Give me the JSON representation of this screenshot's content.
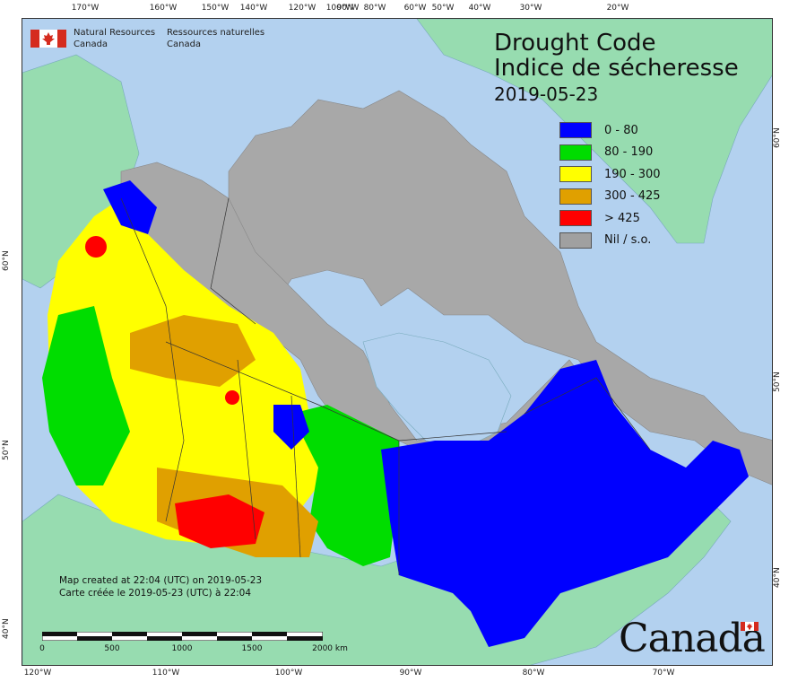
{
  "agency": {
    "en_line1": "Natural Resources",
    "en_line2": "Canada",
    "fr_line1": "Ressources naturelles",
    "fr_line2": "Canada"
  },
  "title": {
    "en": "Drought Code",
    "fr": "Indice de sécheresse",
    "date": "2019-05-23"
  },
  "legend": [
    {
      "label": "0 - 80",
      "color": "#0000ff"
    },
    {
      "label": "80 - 190",
      "color": "#00dd00"
    },
    {
      "label": "190 - 300",
      "color": "#ffff00"
    },
    {
      "label": "300 - 425",
      "color": "#e0a000"
    },
    {
      "label": "> 425",
      "color": "#ff0000"
    },
    {
      "label": "Nil / s.o.",
      "color": "#a0a0a0"
    }
  ],
  "created": {
    "en": "Map created at 22:04 (UTC) on 2019-05-23",
    "fr": "Carte créée le 2019-05-23 (UTC) à 22:04"
  },
  "scale": {
    "labels": [
      "0",
      "500",
      "1000",
      "1500",
      "2000  km"
    ]
  },
  "wordmark": "Canada",
  "graticule": {
    "top": [
      "170°W",
      "160°W",
      "150°W",
      "140°W",
      "120°W",
      "100°W",
      "90°W",
      "80°W",
      "60°W",
      "50°W",
      "40°W",
      "30°W",
      "20°W"
    ],
    "bottom": [
      "120°W",
      "110°W",
      "100°W",
      "90°W",
      "80°W",
      "70°W"
    ],
    "left": [
      "60°N",
      "50°N",
      "40°N"
    ],
    "right": [
      "60°N",
      "50°N",
      "40°N"
    ]
  }
}
